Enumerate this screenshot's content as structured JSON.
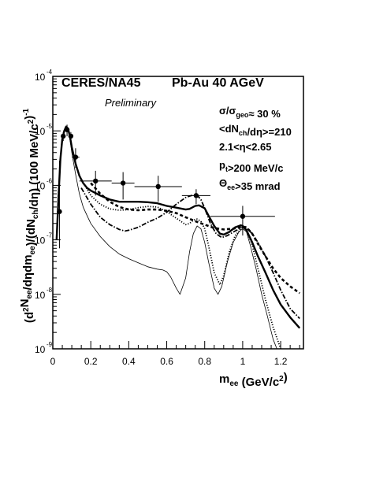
{
  "chart_data": {
    "type": "line",
    "title_left": "CERES/NA45",
    "title_right": "Pb-Au 40 AGeV",
    "subtitle": "Preliminary",
    "xlabel_main": "m",
    "xlabel_sub": "ee",
    "xlabel_unit": "(GeV/c",
    "xlabel_unit_exp": "2",
    "xlabel_unit_close": ")",
    "ylabel": "(d²N_ee/dηdm_ee)/(dN_ch/dη) (100 MeV/c²)⁻¹",
    "xlim": [
      0,
      1.32
    ],
    "ylim_log10": [
      -9,
      -4
    ],
    "y_log": true,
    "grid": false,
    "x_ticks": [
      {
        "value": 0,
        "label": "0"
      },
      {
        "value": 0.2,
        "label": "0.2"
      },
      {
        "value": 0.4,
        "label": "0.4"
      },
      {
        "value": 0.6,
        "label": "0.6"
      },
      {
        "value": 0.8,
        "label": "0.8"
      },
      {
        "value": 1,
        "label": "1"
      },
      {
        "value": 1.2,
        "label": "1.2"
      }
    ],
    "y_ticks": [
      {
        "exp": -9,
        "base": "10",
        "sup": "-9"
      },
      {
        "exp": -8,
        "base": "10",
        "sup": "-8"
      },
      {
        "exp": -7,
        "base": "10",
        "sup": "-7"
      },
      {
        "exp": -6,
        "base": "10",
        "sup": "-6"
      },
      {
        "exp": -5,
        "base": "10",
        "sup": "-5"
      },
      {
        "exp": -4,
        "base": "10",
        "sup": "-4"
      }
    ],
    "annotations": [
      {
        "text": "σ/σ_geo≈ 30 %"
      },
      {
        "text": "<dN_ch/dη>=210"
      },
      {
        "text": "2.1<η<2.65"
      },
      {
        "text": "p_t>200 MeV/c"
      },
      {
        "text": "Θ_ee>35 mrad"
      }
    ],
    "data_points": [
      {
        "x": 0.035,
        "y": 3.3e-07,
        "yerr_lo": 2.6e-07,
        "yerr_hi": 2.5e-06
      },
      {
        "x": 0.055,
        "y": 8e-06,
        "yerr_lo": 1.5e-06,
        "yerr_hi": 1.5e-06
      },
      {
        "x": 0.075,
        "y": 1.05e-05,
        "yerr_lo": 2.5e-06,
        "yerr_hi": 2.5e-06
      },
      {
        "x": 0.095,
        "y": 8e-06,
        "yerr_lo": 1.5e-06,
        "yerr_hi": 1.5e-06
      },
      {
        "x": 0.12,
        "y": 3.3e-06,
        "xerr": 0.02,
        "yerr_lo": 1.2e-06,
        "yerr_hi": 1.5e-06
      },
      {
        "x": 0.225,
        "y": 1.2e-06,
        "xerr": 0.085,
        "yerr_lo": 5.5e-07,
        "yerr_hi": 6.5e-07
      },
      {
        "x": 0.37,
        "y": 1.1e-06,
        "xerr": 0.06,
        "yerr_lo": 5.5e-07,
        "yerr_hi": 6.5e-07
      },
      {
        "x": 0.555,
        "y": 9.5e-07,
        "xerr": 0.125,
        "yerr_lo": 4.5e-07,
        "yerr_hi": 5.5e-07
      },
      {
        "x": 0.755,
        "y": 6.5e-07,
        "xerr": 0.075,
        "yerr_lo": 2e-07,
        "yerr_hi": 2e-07
      },
      {
        "x": 1.0,
        "y": 2.7e-07,
        "xerr": 0.17,
        "yerr_lo": 1.5e-07,
        "yerr_hi": 1.5e-07
      }
    ],
    "series": [
      {
        "style": "thick-solid",
        "x": [
          0.02,
          0.03,
          0.04,
          0.05,
          0.06,
          0.07,
          0.08,
          0.09,
          0.1,
          0.12,
          0.14,
          0.16,
          0.18,
          0.2,
          0.25,
          0.3,
          0.35,
          0.4,
          0.45,
          0.5,
          0.55,
          0.6,
          0.65,
          0.7,
          0.72,
          0.75,
          0.77,
          0.8,
          0.82,
          0.85,
          0.88,
          0.9,
          0.93,
          0.96,
          0.99,
          1.0,
          1.02,
          1.05,
          1.08,
          1.12,
          1.16,
          1.2,
          1.25,
          1.3
        ],
        "y": [
          1e-07,
          6e-07,
          3e-06,
          7e-06,
          1e-05,
          1.2e-05,
          1.1e-05,
          8e-06,
          5e-06,
          2.5e-06,
          1.5e-06,
          1.1e-06,
          9e-07,
          8e-07,
          6.5e-07,
          5.5e-07,
          5e-07,
          5e-07,
          5e-07,
          4.9e-07,
          4.7e-07,
          4.2e-07,
          3.9e-07,
          3.6e-07,
          3.7e-07,
          4.2e-07,
          4.3e-07,
          3.8e-07,
          2.8e-07,
          1.8e-07,
          1.3e-07,
          1.25e-07,
          1.4e-07,
          1.7e-07,
          1.85e-07,
          1.8e-07,
          1.5e-07,
          9e-08,
          5e-08,
          2.5e-08,
          1.2e-08,
          6.5e-09,
          3.8e-09,
          2.4e-09
        ]
      },
      {
        "style": "thin-solid",
        "x": [
          0.02,
          0.03,
          0.04,
          0.05,
          0.06,
          0.07,
          0.08,
          0.09,
          0.1,
          0.12,
          0.14,
          0.16,
          0.18,
          0.2,
          0.25,
          0.3,
          0.35,
          0.4,
          0.45,
          0.5,
          0.55,
          0.58,
          0.6,
          0.62,
          0.65,
          0.67,
          0.7,
          0.72,
          0.74,
          0.76,
          0.78,
          0.8,
          0.82,
          0.85,
          0.87,
          0.89,
          0.92,
          0.95,
          0.98,
          1.0,
          1.02,
          1.04,
          1.07,
          1.1,
          1.13,
          1.16,
          1.18,
          1.2
        ],
        "y": [
          1e-07,
          6e-07,
          3e-06,
          7e-06,
          1e-05,
          1.15e-05,
          1e-05,
          7e-06,
          4e-06,
          1.6e-06,
          7e-07,
          4e-07,
          2.8e-07,
          2e-07,
          1.15e-07,
          7.5e-08,
          5.5e-08,
          4.5e-08,
          3.8e-08,
          3.2e-08,
          2.9e-08,
          2.8e-08,
          2.6e-08,
          2.1e-08,
          1.3e-08,
          1e-08,
          2e-08,
          6e-08,
          1.3e-07,
          1.8e-07,
          1.6e-07,
          9e-08,
          4e-08,
          1.3e-08,
          1e-08,
          1.4e-08,
          4e-08,
          9e-08,
          1.4e-07,
          1.6e-07,
          1.4e-07,
          8e-08,
          3e-08,
          1e-08,
          4e-09,
          1.5e-09,
          1e-09,
          7e-10
        ]
      },
      {
        "style": "thick-dashed",
        "x": [
          0.2,
          0.25,
          0.3,
          0.35,
          0.4,
          0.45,
          0.5,
          0.55,
          0.6,
          0.65,
          0.7,
          0.75,
          0.8,
          0.85,
          0.9,
          0.95,
          1.0,
          1.02,
          1.05,
          1.08,
          1.12,
          1.16,
          1.2,
          1.25,
          1.3
        ],
        "y": [
          1.1e-06,
          7e-07,
          5e-07,
          4e-07,
          3.6e-07,
          3.5e-07,
          3.6e-07,
          3.6e-07,
          3.4e-07,
          3.1e-07,
          2.6e-07,
          2.2e-07,
          1.9e-07,
          1.65e-07,
          1.55e-07,
          1.6e-07,
          1.75e-07,
          1.7e-07,
          1.3e-07,
          8.5e-08,
          5e-08,
          3e-08,
          2e-08,
          1.4e-08,
          1.05e-08
        ]
      },
      {
        "style": "dotted",
        "x": [
          0.15,
          0.2,
          0.25,
          0.3,
          0.35,
          0.4,
          0.45,
          0.5,
          0.55,
          0.6,
          0.65,
          0.7,
          0.72,
          0.74,
          0.76,
          0.78,
          0.8,
          0.82,
          0.85,
          0.88,
          0.9,
          0.93,
          0.96,
          1.0,
          1.02,
          1.05,
          1.08,
          1.12,
          1.16,
          1.2,
          1.25
        ],
        "y": [
          1.3e-06,
          6.5e-07,
          4.5e-07,
          3.7e-07,
          3.5e-07,
          3.6e-07,
          3.9e-07,
          4.1e-07,
          4e-07,
          3.3e-07,
          2.5e-07,
          1.9e-07,
          2e-07,
          2.3e-07,
          2.4e-07,
          2.2e-07,
          1.6e-07,
          8e-08,
          2.5e-08,
          1.5e-08,
          2.2e-08,
          6e-08,
          1.2e-07,
          1.7e-07,
          1.5e-07,
          8e-08,
          3e-08,
          8e-09,
          2.5e-09,
          1e-09,
          6e-10
        ]
      },
      {
        "style": "dash-dot",
        "x": [
          0.15,
          0.2,
          0.25,
          0.3,
          0.35,
          0.38,
          0.4,
          0.45,
          0.5,
          0.55,
          0.6,
          0.65,
          0.7,
          0.73,
          0.76,
          0.78,
          0.8,
          0.83,
          0.86,
          0.89,
          0.92,
          0.96,
          1.0,
          1.02,
          1.05,
          1.08,
          1.12,
          1.16,
          1.2,
          1.25,
          1.3
        ],
        "y": [
          9e-07,
          4.5e-07,
          2.6e-07,
          1.9e-07,
          1.55e-07,
          1.45e-07,
          1.5e-07,
          1.7e-07,
          2.1e-07,
          2.5e-07,
          3.2e-07,
          4.5e-07,
          6e-07,
          6.5e-07,
          6.6e-07,
          5.5e-07,
          3.8e-07,
          2e-07,
          1.3e-07,
          1.1e-07,
          1.2e-07,
          1.45e-07,
          1.7e-07,
          1.65e-07,
          1.3e-07,
          9e-08,
          5e-08,
          2.5e-08,
          1.2e-08,
          5.5e-09,
          3.6e-09
        ]
      }
    ]
  }
}
